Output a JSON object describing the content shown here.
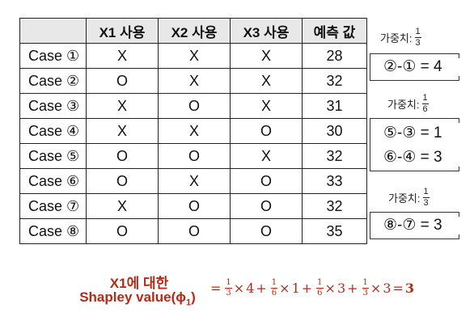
{
  "table": {
    "headers": [
      "",
      "X1 사용",
      "X2 사용",
      "X3 사용",
      "예측 값"
    ],
    "rows": [
      {
        "case": "Case ①",
        "x1": "X",
        "x2": "X",
        "x3": "X",
        "pred": "28"
      },
      {
        "case": "Case ②",
        "x1": "O",
        "x2": "X",
        "x3": "X",
        "pred": "32"
      },
      {
        "case": "Case ③",
        "x1": "X",
        "x2": "O",
        "x3": "X",
        "pred": "31"
      },
      {
        "case": "Case ④",
        "x1": "X",
        "x2": "X",
        "x3": "O",
        "pred": "30"
      },
      {
        "case": "Case ⑤",
        "x1": "O",
        "x2": "O",
        "x3": "X",
        "pred": "32"
      },
      {
        "case": "Case ⑥",
        "x1": "O",
        "x2": "X",
        "x3": "O",
        "pred": "33"
      },
      {
        "case": "Case ⑦",
        "x1": "X",
        "x2": "O",
        "x3": "O",
        "pred": "32"
      },
      {
        "case": "Case ⑧",
        "x1": "O",
        "x2": "O",
        "x3": "O",
        "pred": "35"
      }
    ]
  },
  "weights": [
    {
      "label": "가중치:",
      "num": "1",
      "den": "3",
      "lines": [
        "②-① = 4"
      ]
    },
    {
      "label": "가중치:",
      "num": "1",
      "den": "6",
      "lines": [
        "⑤-③ = 1",
        "⑥-④ = 3"
      ]
    },
    {
      "label": "가중치:",
      "num": "1",
      "den": "3",
      "lines": [
        "⑧-⑦ = 3"
      ]
    }
  ],
  "shapley": {
    "title_line1": "X1에 대한",
    "title_line2": "Shapley value(ϕ",
    "title_sub": "1",
    "title_close": ")",
    "formula": {
      "eq": "=",
      "terms": [
        {
          "num": "1",
          "den": "3",
          "times": "×",
          "value": "4"
        },
        {
          "num": "1",
          "den": "6",
          "times": "×",
          "value": "1"
        },
        {
          "num": "1",
          "den": "6",
          "times": "×",
          "value": "3"
        },
        {
          "num": "1",
          "den": "3",
          "times": "×",
          "value": "3"
        }
      ],
      "plus": "+",
      "result": "3"
    }
  }
}
